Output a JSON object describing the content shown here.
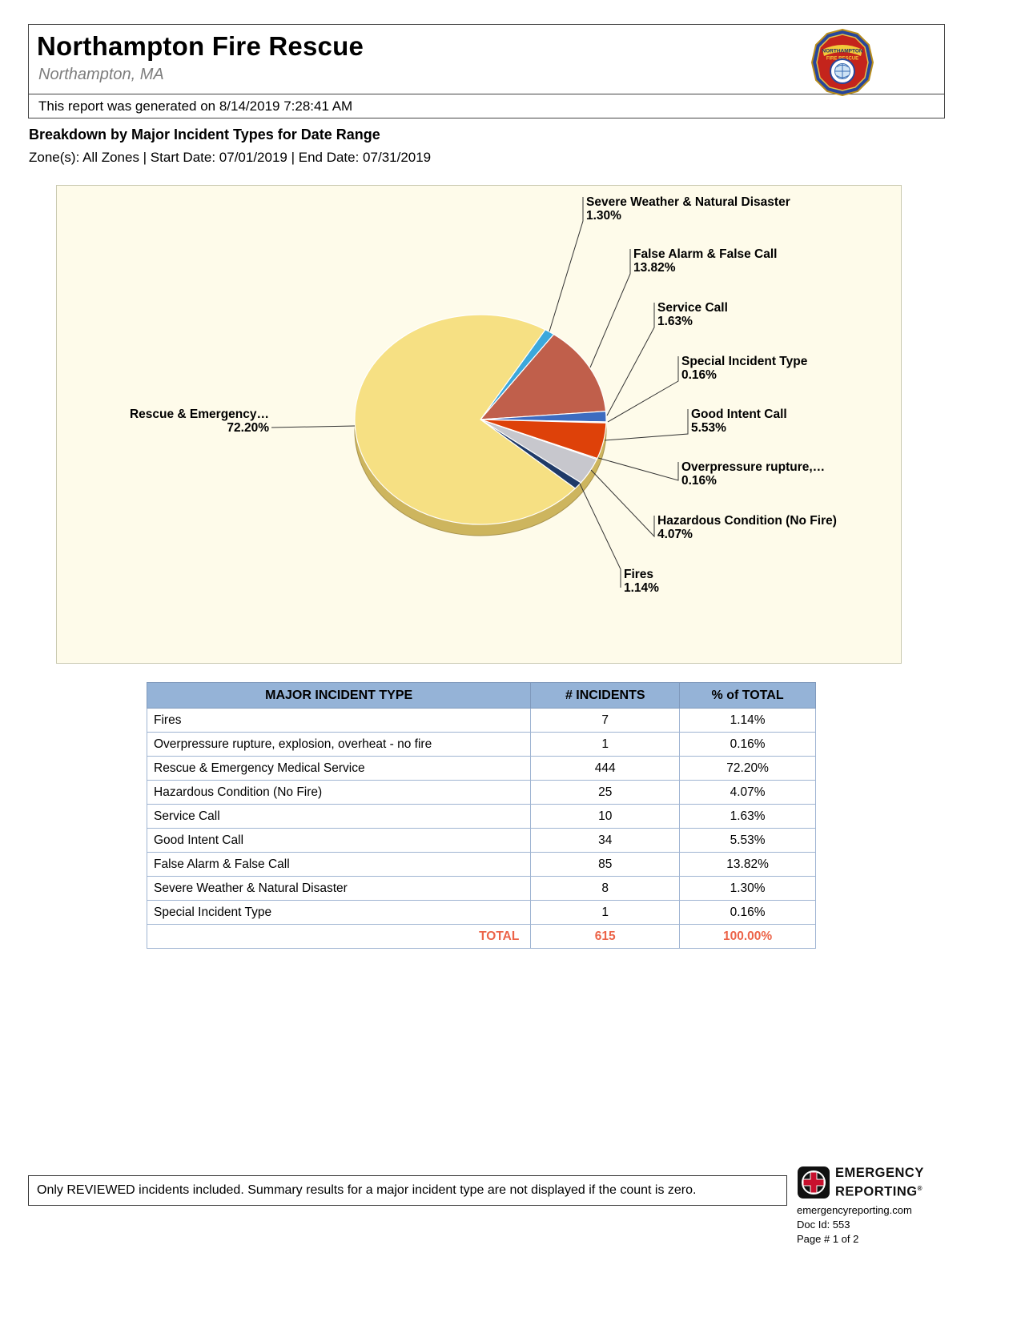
{
  "header": {
    "department": "Northampton Fire Rescue",
    "location": "Northampton, MA",
    "generated": "This report was generated on 8/14/2019 7:28:41 AM",
    "badge_top": "NORTHAMPTON",
    "badge_bottom": "FIRE RESCUE"
  },
  "report": {
    "title": "Breakdown by Major Incident Types for Date Range",
    "filters": "Zone(s): All Zones | Start Date: 07/01/2019 | End Date: 07/31/2019"
  },
  "chart_data": {
    "type": "pie",
    "title": "Breakdown by Major Incident Types for Date Range",
    "direction": "clockwise",
    "start_angle_deg": 31,
    "total_incidents": 615,
    "slices": [
      {
        "id": "severe-weather",
        "name": "Severe Weather & Natural Disaster",
        "label": "Severe Weather & Natural Disaster",
        "pct": 1.3,
        "pct_label": "1.30%",
        "count": 8,
        "color": "#3BA8DC"
      },
      {
        "id": "false-alarm",
        "name": "False Alarm & False Call",
        "label": "False Alarm & False Call",
        "pct": 13.82,
        "pct_label": "13.82%",
        "count": 85,
        "color": "#C05F4B"
      },
      {
        "id": "service-call",
        "name": "Service Call",
        "label": "Service Call",
        "pct": 1.63,
        "pct_label": "1.63%",
        "count": 10,
        "color": "#3D6CC0"
      },
      {
        "id": "special-incident",
        "name": "Special Incident Type",
        "label": "Special Incident Type",
        "pct": 0.16,
        "pct_label": "0.16%",
        "count": 1,
        "color": "#7B5EA7"
      },
      {
        "id": "good-intent",
        "name": "Good Intent Call",
        "label": "Good Intent Call",
        "pct": 5.53,
        "pct_label": "5.53%",
        "count": 34,
        "color": "#DE4109"
      },
      {
        "id": "overpressure",
        "name": "Overpressure rupture, explosion, overheat - no fire",
        "label": "Overpressure  rupture,…",
        "pct": 0.16,
        "pct_label": "0.16%",
        "count": 1,
        "color": "#2E7F99"
      },
      {
        "id": "hazardous-condition",
        "name": "Hazardous Condition (No Fire)",
        "label": "Hazardous Condition (No Fire)",
        "pct": 4.07,
        "pct_label": "4.07%",
        "count": 25,
        "color": "#C7C7CD"
      },
      {
        "id": "fires",
        "name": "Fires",
        "label": "Fires",
        "pct": 1.14,
        "pct_label": "1.14%",
        "count": 7,
        "color": "#1F3A68"
      },
      {
        "id": "rescue-ems",
        "name": "Rescue & Emergency Medical Service",
        "label": "Rescue & Emergency…",
        "pct": 72.2,
        "pct_label": "72.20%",
        "count": 444,
        "color": "#F6E083"
      }
    ]
  },
  "table": {
    "headers": [
      "MAJOR INCIDENT TYPE",
      "# INCIDENTS",
      "% of TOTAL"
    ],
    "rows": [
      [
        "Fires",
        "7",
        "1.14%"
      ],
      [
        "Overpressure rupture, explosion, overheat - no fire",
        "1",
        "0.16%"
      ],
      [
        "Rescue & Emergency Medical Service",
        "444",
        "72.20%"
      ],
      [
        "Hazardous Condition (No Fire)",
        "25",
        "4.07%"
      ],
      [
        "Service Call",
        "10",
        "1.63%"
      ],
      [
        "Good Intent Call",
        "34",
        "5.53%"
      ],
      [
        "False Alarm & False Call",
        "85",
        "13.82%"
      ],
      [
        "Severe Weather & Natural Disaster",
        "8",
        "1.30%"
      ],
      [
        "Special Incident Type",
        "1",
        "0.16%"
      ]
    ],
    "total": {
      "label": "TOTAL",
      "incidents": "615",
      "pct": "100.00%"
    }
  },
  "footer": {
    "note": "Only REVIEWED incidents included.  Summary results for a major incident type are not displayed if the count is zero.",
    "brand_line1": "EMERGENCY",
    "brand_line2": "REPORTING",
    "registered": "®",
    "website": "emergencyreporting.com",
    "doc_id": "Doc Id: 553",
    "page": "Page # 1 of 2"
  }
}
